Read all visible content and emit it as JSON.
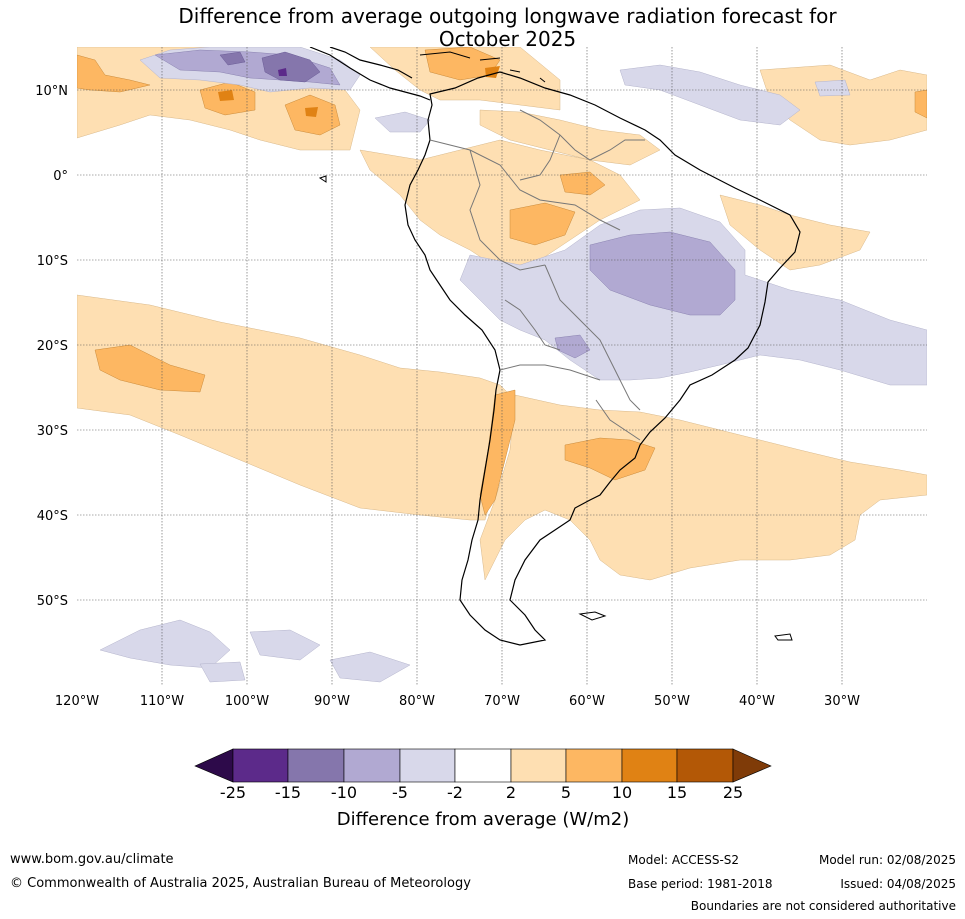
{
  "title": {
    "line1": "Difference from average outgoing longwave radiation forecast for",
    "line2": "October 2025"
  },
  "map": {
    "lat_ticks": [
      "10°N",
      "0°",
      "10°S",
      "20°S",
      "30°S",
      "40°S",
      "50°S"
    ],
    "lon_ticks": [
      "120°W",
      "110°W",
      "100°W",
      "90°W",
      "80°W",
      "70°W",
      "60°W",
      "50°W",
      "40°W",
      "30°W"
    ],
    "extent": {
      "lon_min": -120,
      "lon_max": -20,
      "lat_min": -60,
      "lat_max": 15
    }
  },
  "colorbar": {
    "title": "Difference from average (W/m2)",
    "labels": [
      "-25",
      "-15",
      "-10",
      "-5",
      "-2",
      "2",
      "5",
      "10",
      "15",
      "25"
    ],
    "colors": [
      "#2d0a4a",
      "#5c2a8a",
      "#8576ac",
      "#b1a9d2",
      "#d8d8ea",
      "#ffffff",
      "#fedfb2",
      "#fdb762",
      "#e08214",
      "#b35806",
      "#7f3b08"
    ]
  },
  "footer": {
    "website": "www.bom.gov.au/climate",
    "copyright": "© Commonwealth of Australia 2025, Australian Bureau of Meteorology",
    "model": "Model: ACCESS-S2",
    "base_period": "Base period: 1981-2018",
    "model_run": "Model run: 02/08/2025",
    "issued": "Issued: 04/08/2025",
    "disclaimer": "Boundaries are not considered authoritative"
  }
}
